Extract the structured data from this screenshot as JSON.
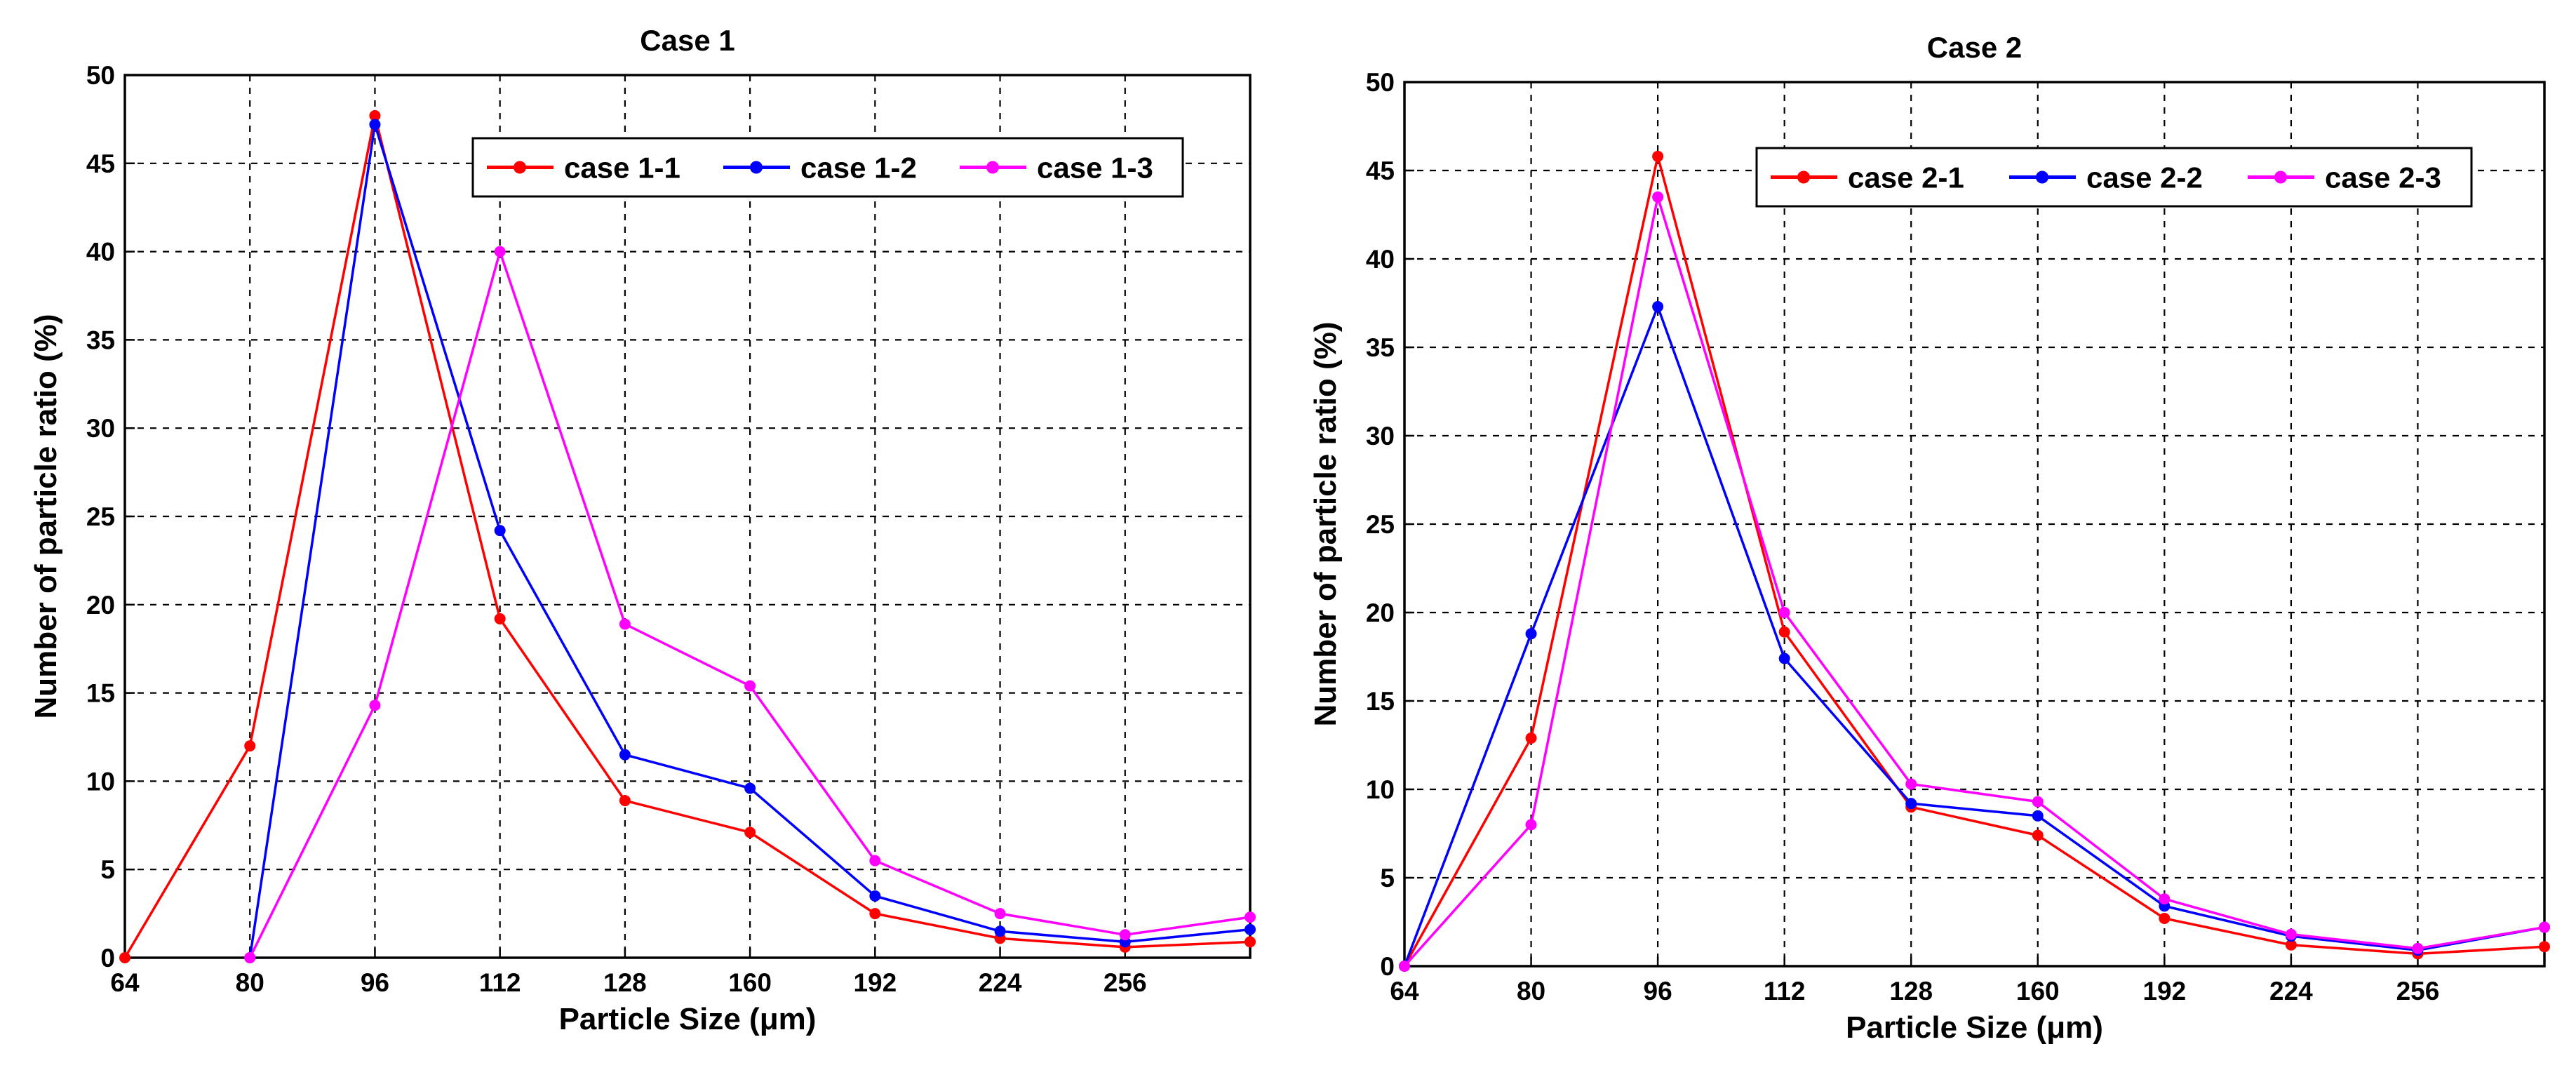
{
  "chart_data": [
    {
      "type": "line",
      "title": "Case 1",
      "xlabel": "Particle Size (μm)",
      "ylabel": "Number of particle ratio (%)",
      "ylim": [
        0,
        50
      ],
      "yticks": [
        "0",
        "5",
        "10",
        "15",
        "20",
        "25",
        "30",
        "35",
        "40",
        "45",
        "50"
      ],
      "categories": [
        "64",
        "80",
        "96",
        "112",
        "128",
        "160",
        "192",
        "224",
        "256",
        ""
      ],
      "grid": true,
      "legend_position": "top-right",
      "series": [
        {
          "name": "case 1-1",
          "color": "#ff0000",
          "values": [
            0,
            12,
            47.7,
            19.2,
            8.9,
            7.1,
            2.5,
            1.1,
            0.6,
            0.9
          ]
        },
        {
          "name": "case 1-2",
          "color": "#0000ff",
          "values": [
            null,
            0,
            47.2,
            24.2,
            11.5,
            9.6,
            3.5,
            1.5,
            0.9,
            1.6
          ]
        },
        {
          "name": "case 1-3",
          "color": "#ff00ff",
          "values": [
            null,
            0,
            14.3,
            40,
            18.9,
            15.4,
            5.5,
            2.5,
            1.3,
            2.3
          ]
        }
      ]
    },
    {
      "type": "line",
      "title": "Case 2",
      "xlabel": "Particle Size (μm)",
      "ylabel": "Number of particle ratio (%)",
      "ylim": [
        0,
        50
      ],
      "yticks": [
        "0",
        "5",
        "10",
        "15",
        "20",
        "25",
        "30",
        "35",
        "40",
        "45",
        "50"
      ],
      "categories": [
        "64",
        "80",
        "96",
        "112",
        "128",
        "160",
        "192",
        "224",
        "256",
        ""
      ],
      "grid": true,
      "legend_position": "top-right",
      "series": [
        {
          "name": "case 2-1",
          "color": "#ff0000",
          "values": [
            0,
            12.9,
            45.8,
            18.9,
            9,
            7.4,
            2.7,
            1.2,
            0.7,
            1.1
          ]
        },
        {
          "name": "case 2-2",
          "color": "#0000ff",
          "values": [
            0,
            18.8,
            37.3,
            17.4,
            9.2,
            8.5,
            3.4,
            1.7,
            0.9,
            2.2
          ]
        },
        {
          "name": "case 2-3",
          "color": "#ff00ff",
          "values": [
            0,
            8,
            43.5,
            20,
            10.3,
            9.3,
            3.8,
            1.8,
            1,
            2.2
          ]
        }
      ]
    }
  ]
}
